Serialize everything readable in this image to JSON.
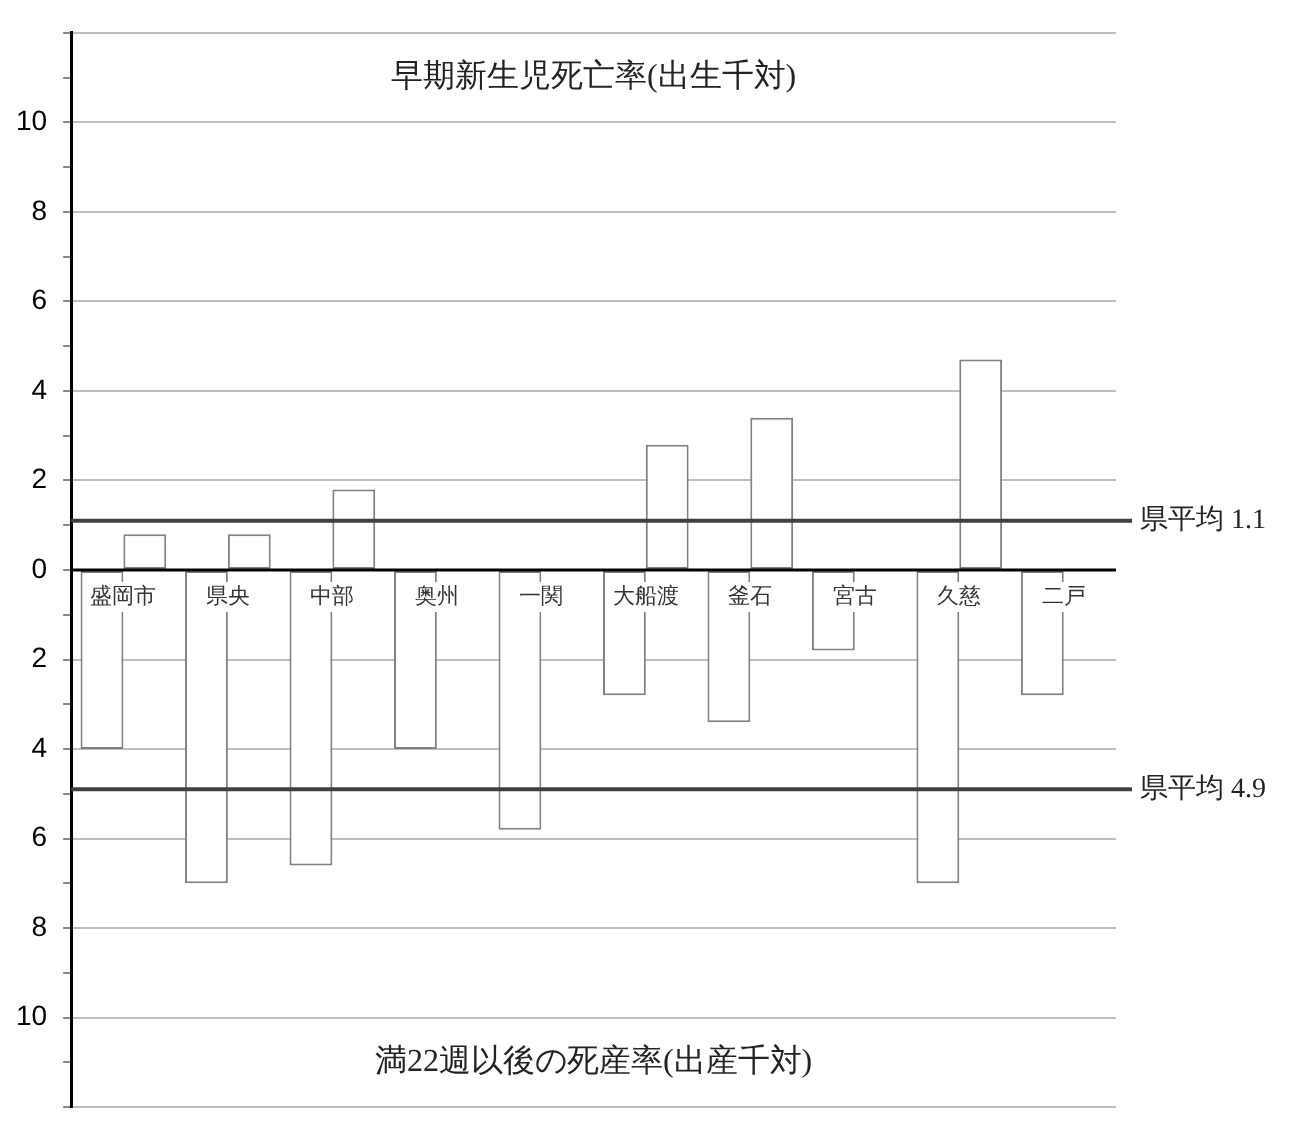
{
  "chart_data": {
    "type": "bar",
    "categories": [
      "盛岡市",
      "県央",
      "中部",
      "奥州",
      "一関",
      "大船渡",
      "釜石",
      "宮古",
      "久慈",
      "二戸"
    ],
    "series": [
      {
        "color": "#ffffff",
        "values": [
          -4.0,
          -7.0,
          -6.6,
          -4.0,
          -5.8,
          -2.8,
          -3.4,
          -1.8,
          -7.0,
          -2.8
        ]
      },
      {
        "color": "#ffffff",
        "values": [
          0.8,
          0.8,
          1.8,
          0,
          0,
          2.8,
          3.4,
          0,
          4.7,
          0
        ]
      }
    ],
    "ylim": [
      -12,
      12
    ],
    "yticks": [
      {
        "value": -12,
        "label": null
      },
      {
        "value": -11,
        "label": null
      },
      {
        "value": -10,
        "label": "10"
      },
      {
        "value": -9,
        "label": null
      },
      {
        "value": -8,
        "label": "8"
      },
      {
        "value": -7,
        "label": null
      },
      {
        "value": -6,
        "label": "6"
      },
      {
        "value": -5,
        "label": null
      },
      {
        "value": -4,
        "label": "4"
      },
      {
        "value": -3,
        "label": null
      },
      {
        "value": -2,
        "label": "2"
      },
      {
        "value": -1,
        "label": null
      },
      0,
      {
        "value": 1,
        "label": null
      },
      2,
      {
        "value": 3,
        "label": null
      },
      4,
      {
        "value": 5,
        "label": null
      },
      6,
      {
        "value": 7,
        "label": null
      },
      8,
      {
        "value": 9,
        "label": null
      },
      10,
      {
        "value": 11,
        "label": null
      },
      {
        "value": 12,
        "label": null
      }
    ],
    "grid": "y",
    "legend": false,
    "ref_lines": [
      {
        "axis": "y",
        "value": 1.1,
        "label": "県平均 1.1"
      },
      {
        "axis": "y",
        "value": -4.9,
        "label": "県平均 4.9"
      }
    ],
    "annotations": [
      "早期新生児死亡率(出生千対)",
      "満22週以後の死産率(出産千対)"
    ]
  }
}
